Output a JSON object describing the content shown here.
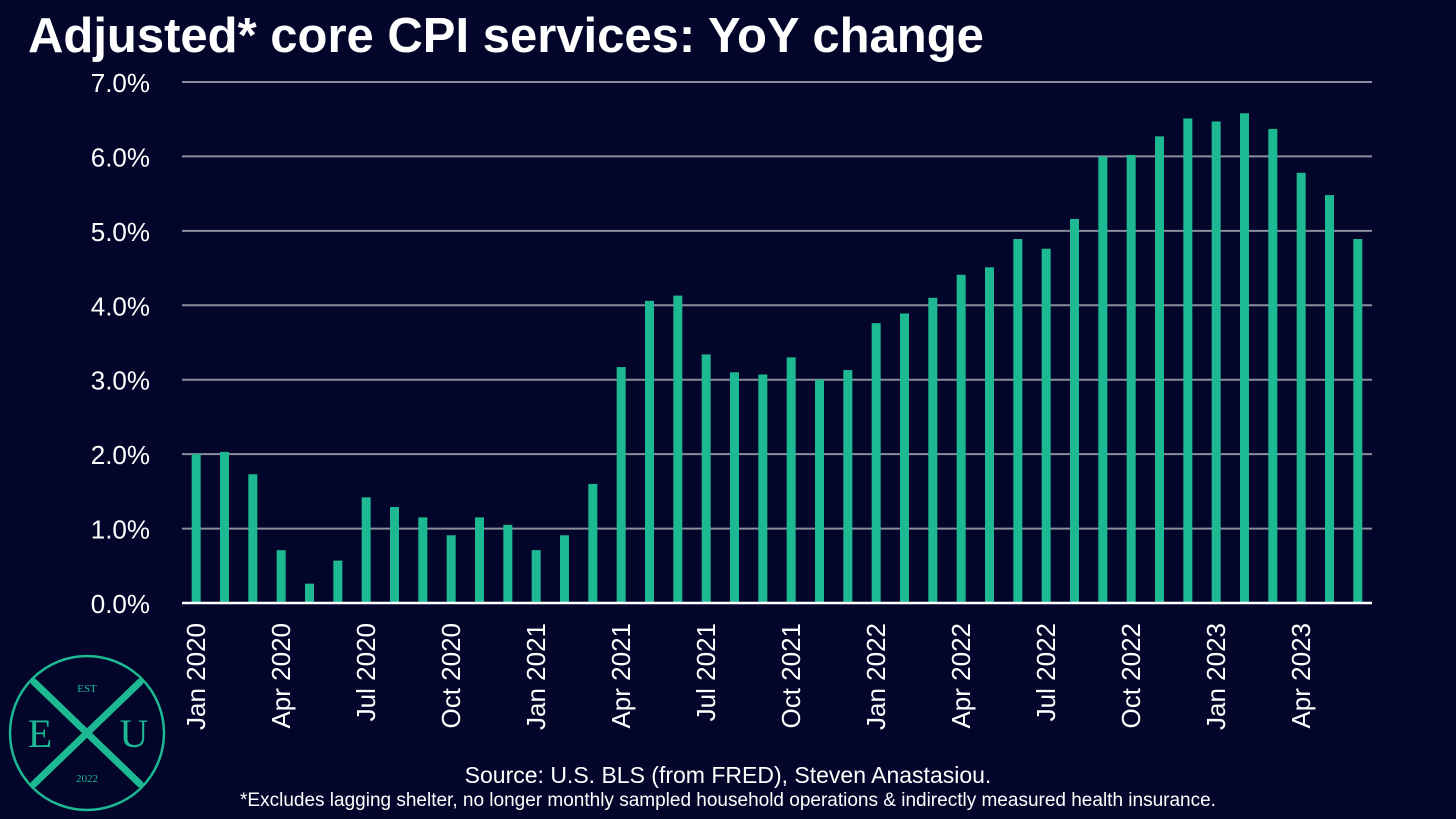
{
  "title": "Adjusted* core CPI services: YoY change",
  "source": "Source: U.S. BLS (from FRED), Steven Anastasiou.",
  "footnote": "*Excludes lagging shelter, no longer monthly sampled household operations & indirectly measured health insurance.",
  "logo": {
    "top": "EST",
    "left_letter": "E",
    "center_letter": "X",
    "right_letter": "U",
    "bottom": "2022",
    "color": "#1db992"
  },
  "colors": {
    "background": "#03062a",
    "bar": "#1db992",
    "grid": "#8a8d9c",
    "text": "#ffffff"
  },
  "chart_data": {
    "type": "bar",
    "title": "Adjusted* core CPI services: YoY change",
    "xlabel": "",
    "ylabel": "",
    "ylim": [
      0,
      7
    ],
    "yticks": [
      "0.0%",
      "1.0%",
      "2.0%",
      "3.0%",
      "4.0%",
      "5.0%",
      "6.0%",
      "7.0%"
    ],
    "grid": true,
    "categories": [
      "Jan 2020",
      "Feb 2020",
      "Mar 2020",
      "Apr 2020",
      "May 2020",
      "Jun 2020",
      "Jul 2020",
      "Aug 2020",
      "Sep 2020",
      "Oct 2020",
      "Nov 2020",
      "Dec 2020",
      "Jan 2021",
      "Feb 2021",
      "Mar 2021",
      "Apr 2021",
      "May 2021",
      "Jun 2021",
      "Jul 2021",
      "Aug 2021",
      "Sep 2021",
      "Oct 2021",
      "Nov 2021",
      "Dec 2021",
      "Jan 2022",
      "Feb 2022",
      "Mar 2022",
      "Apr 2022",
      "May 2022",
      "Jun 2022",
      "Jul 2022",
      "Aug 2022",
      "Sep 2022",
      "Oct 2022",
      "Nov 2022",
      "Dec 2022",
      "Jan 2023",
      "Feb 2023",
      "Mar 2023",
      "Apr 2023",
      "May 2023",
      "Jun 2023"
    ],
    "xtick_labels": [
      "Jan 2020",
      "Apr 2020",
      "Jul 2020",
      "Oct 2020",
      "Jan 2021",
      "Apr 2021",
      "Jul 2021",
      "Oct 2021",
      "Jan 2022",
      "Apr 2022",
      "Jul 2022",
      "Oct 2022",
      "Jan 2023",
      "Apr 2023"
    ],
    "values": [
      2.0,
      2.03,
      1.73,
      0.71,
      0.26,
      0.57,
      1.42,
      1.29,
      1.15,
      0.91,
      1.15,
      1.05,
      0.71,
      0.91,
      1.6,
      3.17,
      4.06,
      4.13,
      3.34,
      3.1,
      3.07,
      3.3,
      3.0,
      3.13,
      3.76,
      3.89,
      4.1,
      4.41,
      4.51,
      4.89,
      4.76,
      5.16,
      6.0,
      6.02,
      6.27,
      6.51,
      6.47,
      6.58,
      6.37,
      5.78,
      5.48,
      4.89
    ]
  }
}
